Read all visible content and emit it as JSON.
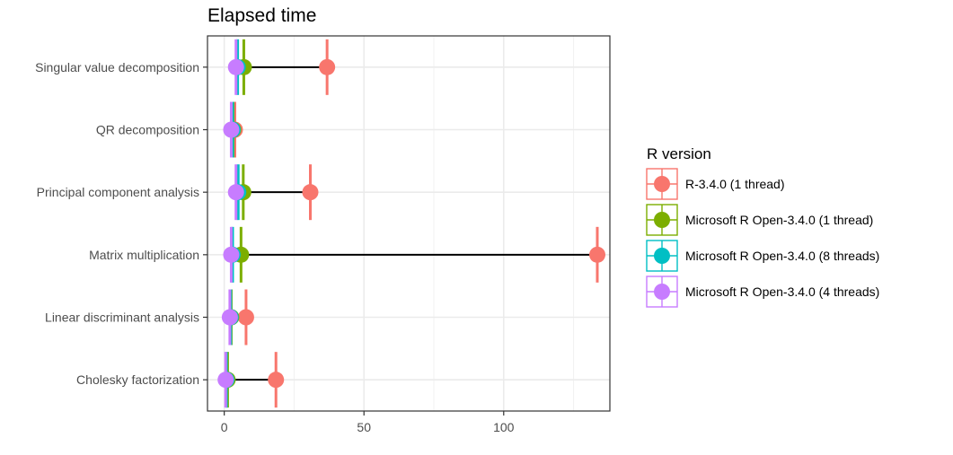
{
  "chart_data": {
    "type": "scatter",
    "title": "Elapsed time",
    "xlabel": "",
    "ylabel": "",
    "xlim": [
      -6,
      138
    ],
    "x_ticks": [
      0,
      50,
      100
    ],
    "categories": [
      "Cholesky factorization",
      "Linear discriminant analysis",
      "Matrix multiplication",
      "Principal component analysis",
      "QR decomposition",
      "Singular value decomposition"
    ],
    "grid": true,
    "legend": {
      "title": "R version",
      "position": "right"
    },
    "series": [
      {
        "name": "R-3.4.0 (1 thread)",
        "color": "#F8766D",
        "values": [
          18.5,
          7.8,
          133.5,
          30.8,
          3.8,
          36.8
        ]
      },
      {
        "name": "Microsoft R Open-3.4.0 (1 thread)",
        "color": "#7CAE00",
        "values": [
          1.2,
          2.5,
          6.0,
          6.8,
          3.2,
          7.0
        ]
      },
      {
        "name": "Microsoft R Open-3.4.0 (8 threads)",
        "color": "#00BFC4",
        "values": [
          0.8,
          2.3,
          3.0,
          5.0,
          3.0,
          4.8
        ]
      },
      {
        "name": "Microsoft R Open-3.4.0 (4 threads)",
        "color": "#C77CFF",
        "values": [
          0.5,
          2.0,
          2.5,
          4.2,
          2.5,
          4.2
        ]
      }
    ]
  }
}
